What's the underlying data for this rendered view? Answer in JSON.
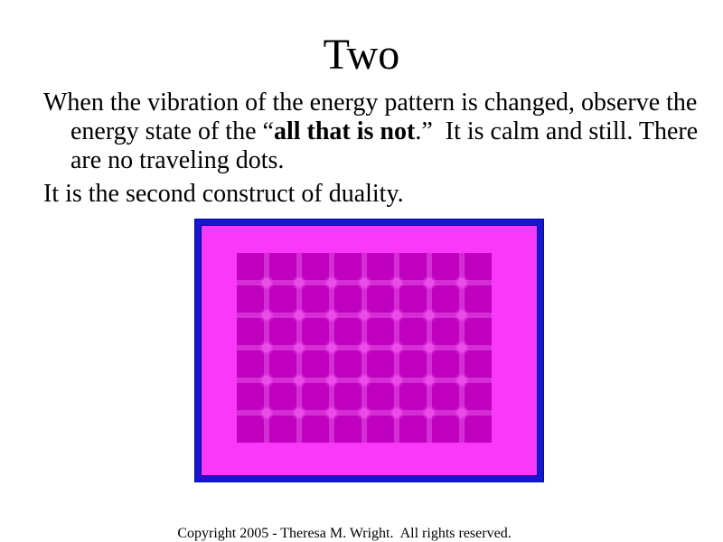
{
  "slide": {
    "title": "Two",
    "body": {
      "paragraphs": [
        {
          "lines": [
            {
              "indent": false,
              "runs": [
                {
                  "text": "When the vibration of the energy pattern is changed, observe the",
                  "bold": false
                }
              ]
            },
            {
              "indent": true,
              "runs": [
                {
                  "text": "energy state of the “",
                  "bold": false
                },
                {
                  "text": "all that is not",
                  "bold": true
                },
                {
                  "text": ".”  It is calm and still. There",
                  "bold": false
                }
              ]
            },
            {
              "indent": true,
              "runs": [
                {
                  "text": "are no traveling dots.",
                  "bold": false
                }
              ]
            }
          ]
        },
        {
          "lines": [
            {
              "indent": false,
              "runs": [
                {
                  "text": "It is the second construct of duality.",
                  "bold": false
                }
              ]
            }
          ]
        }
      ]
    },
    "figure": {
      "type": "scintillating-grid-illusion",
      "rows": 6,
      "cols": 8,
      "colors": {
        "border": "#1717ce",
        "border_edge": "#0009a8",
        "background": "#fa38fa",
        "square": "#bf00bf",
        "gap_line": "#d42dd4",
        "intersection_dot": "#e94ce9"
      }
    },
    "footer": "Copyright 2005 - Theresa M. Wright.  All rights reserved.",
    "text_color": "#000000",
    "page_background": "#ffffff"
  }
}
